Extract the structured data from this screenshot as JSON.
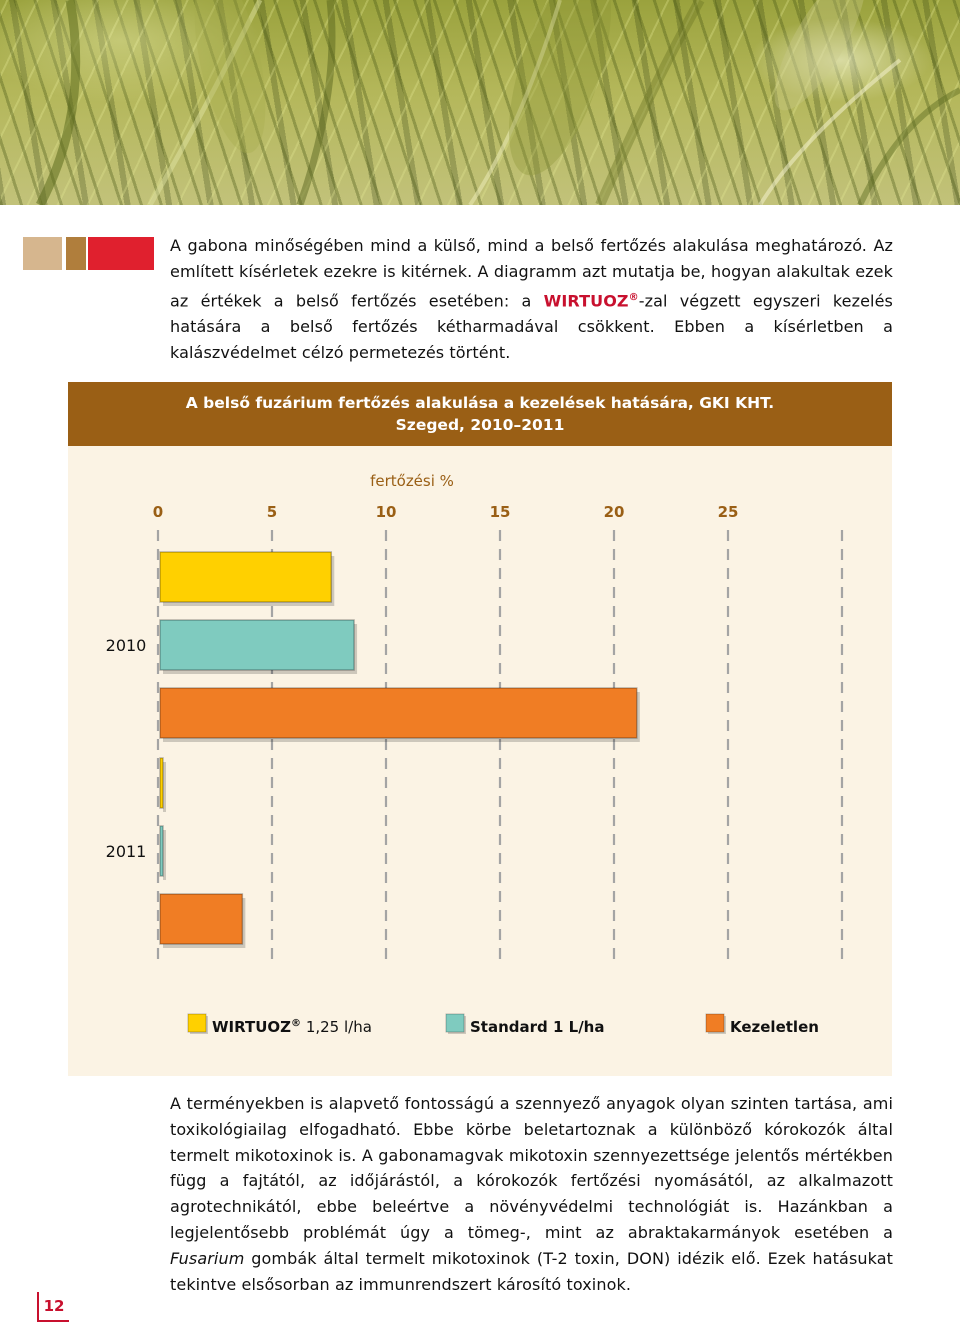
{
  "intro": {
    "text_1": "A gabona minőségében mind a külső, mind a belső fertőzés alakulása meghatározó. Az említett kísérletek ezekre is kitérnek. A diagramm azt mutatja be, hogyan alakultak ezek az értékek a belső fertőzés esetében: a ",
    "brand": "WIRTUOZ",
    "reg": "®",
    "text_2": "-zal végzett egyszeri kezelés hatására a belső fertőzés kétharmadával csökkent. Ebben a kísérletben a kalászvédelmet célzó permetezés történt."
  },
  "chart_data": {
    "type": "bar",
    "orientation": "horizontal",
    "title": "A belső fuzárium fertőzés alakulása a kezelések hatására, GKI KHT.",
    "subtitle": "Szeged, 2010–2011",
    "xlabel": "fertőzési %",
    "xlim": [
      0,
      30
    ],
    "xticks": [
      "0",
      "5",
      "10",
      "15",
      "20",
      "25"
    ],
    "grid": true,
    "categories": [
      "2010",
      "2011"
    ],
    "series": [
      {
        "name": "WIRTUOZ",
        "name_sup": "®",
        "name_suffix": " 1,25 l/ha",
        "color": "#ffd000",
        "values": [
          7.6,
          0.2
        ]
      },
      {
        "name": "Standard 1 L/ha",
        "color": "#7fcbbf",
        "values": [
          8.6,
          0.2
        ]
      },
      {
        "name": "Kezeletlen",
        "color": "#f07d24",
        "values": [
          21.0,
          3.7
        ]
      }
    ],
    "legend_position": "bottom"
  },
  "body": {
    "text_1": "A terményekben is alapvető fontosságú a szennyező anyagok olyan szinten tartása, ami toxikológiailag elfogadható. Ebbe körbe beletartoznak a különböző kórokozók által termelt mikotoxinok is. A gabonamagvak mikotoxin szennyezettsége jelentős mértékben függ a fajtától, az időjárástól, a kórokozók fertőzési nyomásától, az alkalmazott agrotechnikától, ebbe beleértve a növényvédelmi technológiát is. Hazánkban a legjelentősebb problémát úgy a tömeg-, mint az abraktakarmányok esetében a ",
    "italic": "Fusarium",
    "text_2": " gombák által termelt mikotoxinok (T-2 toxin, DON) idézik elő. Ezek hatásukat tekintve elsősorban az immunrendszert károsító toxinok."
  },
  "page_number": "12"
}
